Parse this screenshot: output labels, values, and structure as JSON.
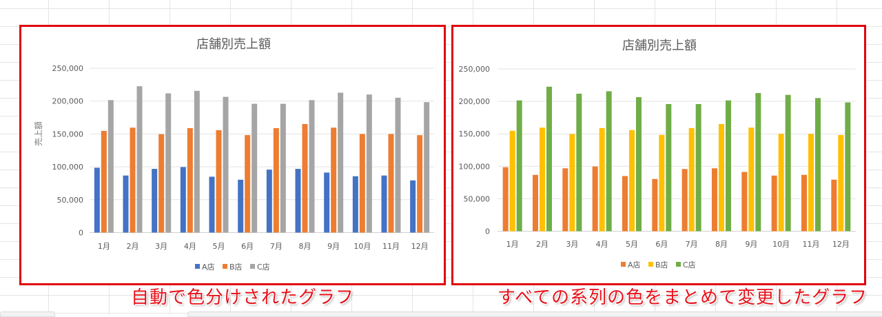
{
  "charts": [
    {
      "id": "auto-color",
      "title": "店舗別売上額",
      "ylabel": "売上額",
      "colors": [
        "#4472c4",
        "#ed7d31",
        "#a5a5a5"
      ],
      "caption": "自動で色分けされたグラフ"
    },
    {
      "id": "unified-color",
      "title": "店舗別売上額",
      "ylabel": "",
      "colors": [
        "#ed7d31",
        "#ffc000",
        "#70ad47"
      ],
      "caption": "すべての系列の色をまとめて変更したグラフ"
    }
  ],
  "chart_data": [
    {
      "type": "bar",
      "title": "店舗別売上額",
      "xlabel": "",
      "ylabel": "売上額",
      "ylim": [
        0,
        250000
      ],
      "yticks": [
        "0",
        "50,000",
        "100,000",
        "150,000",
        "200,000",
        "250,000"
      ],
      "grid": true,
      "legend_position": "bottom",
      "categories": [
        "1月",
        "2月",
        "3月",
        "4月",
        "5月",
        "6月",
        "7月",
        "8月",
        "9月",
        "10月",
        "11月",
        "12月"
      ],
      "series": [
        {
          "name": "A店",
          "color": "#4472c4",
          "values": [
            98600,
            86800,
            96900,
            99700,
            85000,
            80400,
            95800,
            96900,
            91300,
            85700,
            86800,
            79400
          ]
        },
        {
          "name": "B店",
          "color": "#ed7d31",
          "values": [
            154700,
            159600,
            149700,
            158900,
            155800,
            148300,
            158900,
            165100,
            159600,
            150000,
            150000,
            148200
          ]
        },
        {
          "name": "C店",
          "color": "#a5a5a5",
          "values": [
            201500,
            222600,
            211800,
            215600,
            206500,
            195900,
            195900,
            201500,
            212800,
            210000,
            205100,
            198400
          ]
        }
      ]
    },
    {
      "type": "bar",
      "title": "店舗別売上額",
      "xlabel": "",
      "ylabel": "",
      "ylim": [
        0,
        250000
      ],
      "yticks": [
        "0",
        "50,000",
        "100,000",
        "150,000",
        "200,000",
        "250,000"
      ],
      "grid": true,
      "legend_position": "bottom",
      "categories": [
        "1月",
        "2月",
        "3月",
        "4月",
        "5月",
        "6月",
        "7月",
        "8月",
        "9月",
        "10月",
        "11月",
        "12月"
      ],
      "series": [
        {
          "name": "A店",
          "color": "#ed7d31",
          "values": [
            98600,
            86800,
            96900,
            99700,
            85000,
            80400,
            95800,
            96900,
            91300,
            85700,
            86800,
            79400
          ]
        },
        {
          "name": "B店",
          "color": "#ffc000",
          "values": [
            154700,
            159600,
            149700,
            158900,
            155800,
            148300,
            158900,
            165100,
            159600,
            150000,
            150000,
            148200
          ]
        },
        {
          "name": "C店",
          "color": "#70ad47",
          "values": [
            201500,
            222600,
            211800,
            215600,
            206500,
            195900,
            195900,
            201500,
            212800,
            210000,
            205100,
            198400
          ]
        }
      ]
    }
  ]
}
